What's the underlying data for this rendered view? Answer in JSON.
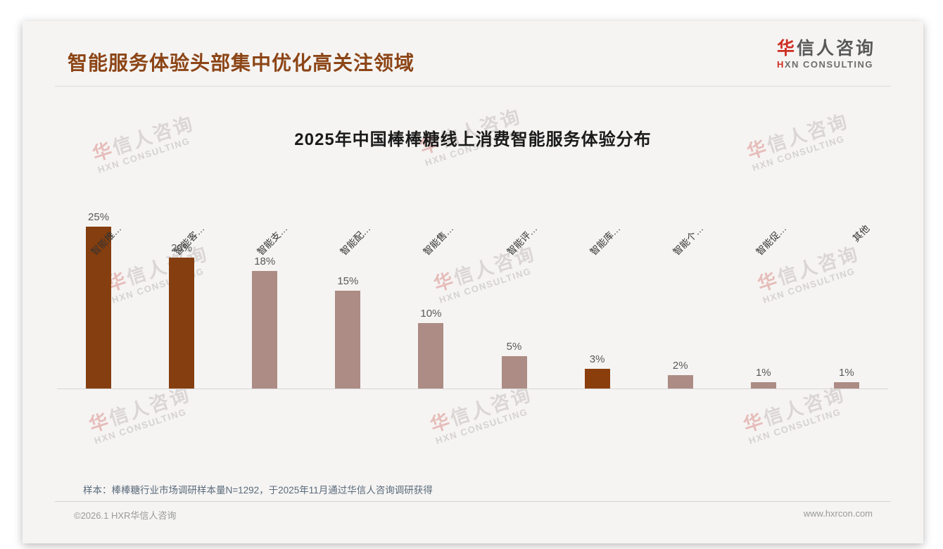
{
  "page": {
    "title": "智能服务体验头部集中优化高关注领域",
    "logo": {
      "zh_first": "华",
      "zh_rest": "信人咨询",
      "en_first": "H",
      "en_rest": "XN CONSULTING"
    },
    "watermark": {
      "zh_first": "华",
      "zh_rest": "信人咨询",
      "en": "HXN CONSULTING"
    },
    "note": "样本：棒棒糖行业市场调研样本量N=1292，于2025年11月通过华信人咨询调研获得",
    "footer_left": "©2026.1 HXR华信人咨询",
    "footer_right": "www.hxrcon.com"
  },
  "chart_data": {
    "type": "bar",
    "title": "2025年中国棒棒糖线上消费智能服务体验分布",
    "categories": [
      "智能推…",
      "智能客…",
      "智能支…",
      "智能配…",
      "智能售…",
      "智能评…",
      "智能库…",
      "智能个…",
      "智能促…",
      "其他"
    ],
    "values": [
      25,
      20,
      18,
      15,
      10,
      5,
      3,
      2,
      1,
      1
    ],
    "value_labels": [
      "25%",
      "20%",
      "18%",
      "15%",
      "10%",
      "5%",
      "3%",
      "2%",
      "1%",
      "1%"
    ],
    "bar_colors": [
      "#853E0F",
      "#853E0F",
      "#AC8C84",
      "#AC8C84",
      "#AC8C84",
      "#AC8C84",
      "#8A3E0C",
      "#AC8C84",
      "#AC8C84",
      "#AC8C84"
    ],
    "xlabel": "",
    "ylabel": "",
    "ylim": [
      0,
      27
    ],
    "grid": false,
    "legend_position": "none",
    "label_rotation_deg": 45,
    "accent_dark": "#853E0F",
    "accent_light": "#AC8C84"
  }
}
